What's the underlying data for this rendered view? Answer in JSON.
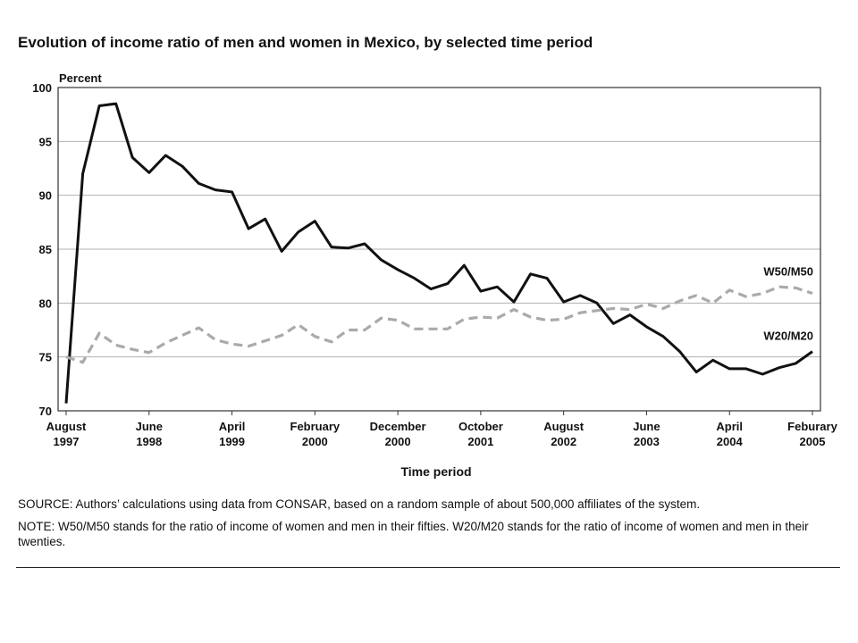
{
  "title": "Evolution of income ratio of men and women in Mexico, by selected time period",
  "source": "SOURCE: Authors’ calculations using data from CONSAR, based on a random sample of about 500,000 affiliates of the system.",
  "note": "NOTE: W50/M50 stands for the ratio of income of women and men in their fifties. W20/M20 stands for the ratio of income of women and men in their twenties.",
  "chart_data": {
    "type": "line",
    "ylabel": "Percent",
    "xlabel": "Time period",
    "ylim": [
      70,
      100
    ],
    "yticks": [
      100,
      95,
      90,
      85,
      80,
      75,
      70
    ],
    "xlim": [
      0,
      45
    ],
    "grid": true,
    "xticks": [
      {
        "pos": 0,
        "month": "August",
        "year": "1997"
      },
      {
        "pos": 5,
        "month": "June",
        "year": "1998"
      },
      {
        "pos": 10,
        "month": "April",
        "year": "1999"
      },
      {
        "pos": 15,
        "month": "February",
        "year": "2000"
      },
      {
        "pos": 20,
        "month": "December",
        "year": "2000"
      },
      {
        "pos": 25,
        "month": "October",
        "year": "2001"
      },
      {
        "pos": 30,
        "month": "August",
        "year": "2002"
      },
      {
        "pos": 35,
        "month": "June",
        "year": "2003"
      },
      {
        "pos": 40,
        "month": "April",
        "year": "2004"
      },
      {
        "pos": 45,
        "month": "Feburary",
        "year": "2005"
      }
    ],
    "series": [
      {
        "name": "W20/M20",
        "color": "#111111",
        "style": "solid",
        "values": [
          70.7,
          92.0,
          98.3,
          98.5,
          93.5,
          92.1,
          93.7,
          92.7,
          91.1,
          90.5,
          90.3,
          86.9,
          87.8,
          84.8,
          86.6,
          87.6,
          85.2,
          85.1,
          85.5,
          84.0,
          83.1,
          82.3,
          81.3,
          81.8,
          83.5,
          81.1,
          81.5,
          80.1,
          82.7,
          82.3,
          80.1,
          80.7,
          80.0,
          78.1,
          78.9,
          77.8,
          76.9,
          75.5,
          73.6,
          74.7,
          73.9,
          73.9,
          73.4,
          74.0,
          74.4,
          75.5
        ]
      },
      {
        "name": "W50/M50",
        "color": "#aaaaaa",
        "style": "dashed",
        "values": [
          75.0,
          74.5,
          77.2,
          76.1,
          75.7,
          75.4,
          76.3,
          77.0,
          77.7,
          76.6,
          76.2,
          76.0,
          76.5,
          77.0,
          78.0,
          76.9,
          76.4,
          77.5,
          77.5,
          78.6,
          78.4,
          77.6,
          77.6,
          77.6,
          78.5,
          78.7,
          78.6,
          79.4,
          78.7,
          78.4,
          78.5,
          79.1,
          79.3,
          79.5,
          79.4,
          79.9,
          79.5,
          80.2,
          80.7,
          80.0,
          81.2,
          80.6,
          80.9,
          81.5,
          81.4,
          80.9
        ]
      }
    ]
  }
}
